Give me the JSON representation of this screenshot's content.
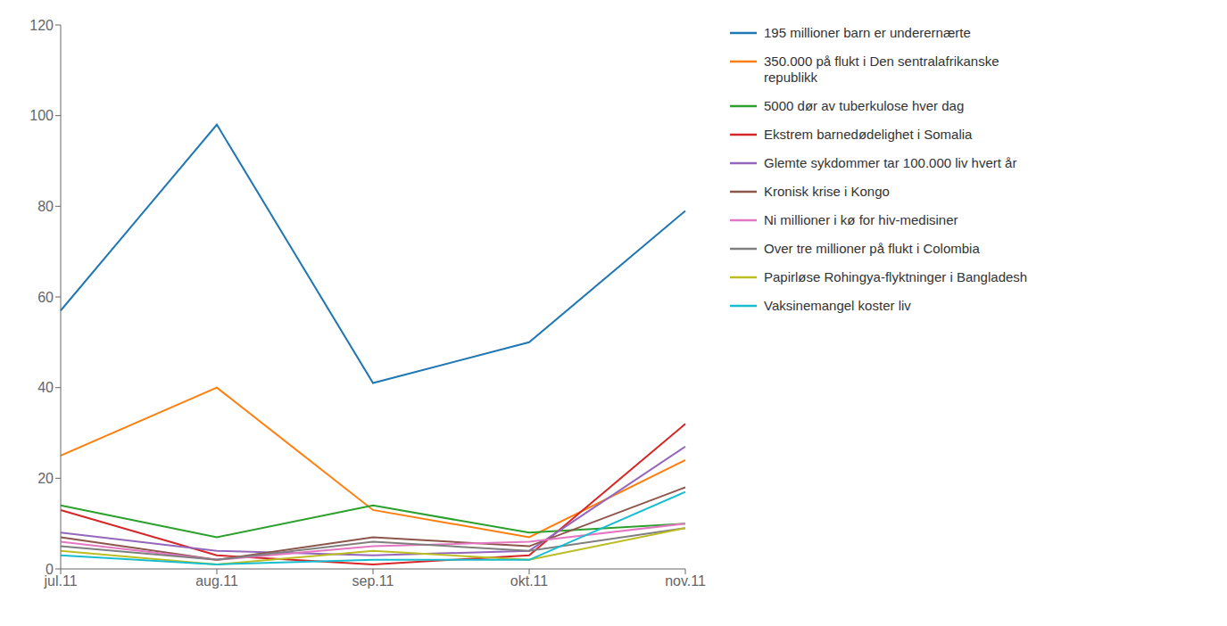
{
  "chart_data": {
    "type": "line",
    "categories": [
      "jul.11",
      "aug.11",
      "sep.11",
      "okt.11",
      "nov.11"
    ],
    "series": [
      {
        "name": "195 millioner barn er underernærte",
        "color": "#1f77b4",
        "values": [
          57,
          98,
          41,
          50,
          79
        ]
      },
      {
        "name": "350.000 på flukt i Den sentralafrikanske\nrepublikk",
        "color": "#ff7f0e",
        "values": [
          25,
          40,
          13,
          7,
          24
        ]
      },
      {
        "name": "5000 dør av tuberkulose hver dag",
        "color": "#2ca02c",
        "values": [
          14,
          7,
          14,
          8,
          10
        ]
      },
      {
        "name": "Ekstrem barnedødelighet i Somalia",
        "color": "#d62728",
        "values": [
          13,
          3,
          1,
          3,
          32
        ]
      },
      {
        "name": "Glemte sykdommer tar 100.000 liv hvert år",
        "color": "#9467bd",
        "values": [
          8,
          4,
          3,
          4,
          27
        ]
      },
      {
        "name": "Kronisk krise i Kongo",
        "color": "#8c564b",
        "values": [
          7,
          2,
          7,
          5,
          18
        ]
      },
      {
        "name": "Ni millioner i kø for hiv-medisiner",
        "color": "#e377c2",
        "values": [
          6,
          2,
          5,
          6,
          10
        ]
      },
      {
        "name": "Over tre millioner på flukt i Colombia",
        "color": "#7f7f7f",
        "values": [
          5,
          2,
          6,
          4,
          9
        ]
      },
      {
        "name": "Papirløse Rohingya-flyktninger i Bangladesh",
        "color": "#bcbd22",
        "values": [
          4,
          1,
          4,
          2,
          9
        ]
      },
      {
        "name": "Vaksinemangel koster liv",
        "color": "#17becf",
        "values": [
          3,
          1,
          2,
          2,
          17
        ]
      }
    ],
    "ylim": [
      0,
      120
    ],
    "yticks": [
      0,
      20,
      40,
      60,
      80,
      100,
      120
    ],
    "grid": false,
    "legend": "right"
  }
}
